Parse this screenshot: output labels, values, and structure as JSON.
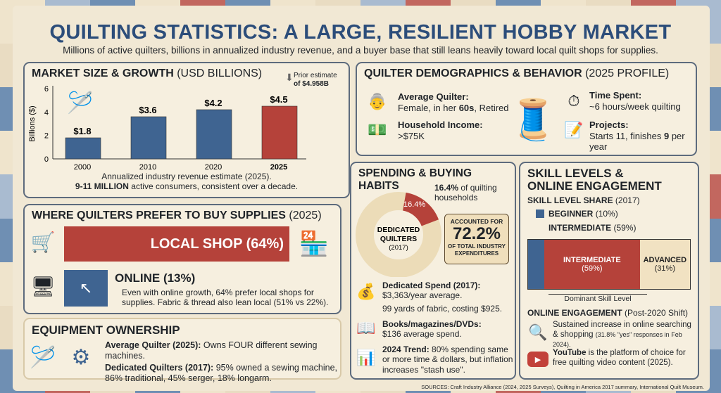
{
  "header": {
    "title": "QUILTING STATISTICS: A LARGE, RESILIENT HOBBY MARKET",
    "subtitle": "Millions of active quilters, billions in annualized industry revenue, and a buyer base that still leans heavily toward local quilt shops for supplies."
  },
  "market": {
    "title": "MARKET SIZE & GROWTH",
    "title_suffix": "(USD BILLIONS)",
    "prior_note": "Prior estimate",
    "prior_value": "of $4.958B",
    "caption1": "Annualized industry revenue estimate (2025).",
    "caption2_bold": "9-11 MILLION",
    "caption2": "active consumers, consistent over a decade."
  },
  "chart_data": {
    "type": "bar",
    "categories": [
      "2000",
      "2010",
      "2020",
      "2025"
    ],
    "values": [
      1.8,
      3.6,
      4.2,
      4.5
    ],
    "data_labels": [
      "$1.8",
      "$3.6",
      "$4.2",
      "$4.5"
    ],
    "ylabel": "Billions ($)",
    "ylim": [
      0,
      6
    ],
    "yticks": [
      "0",
      "2",
      "4",
      "6"
    ],
    "colors": [
      "#3f6491",
      "#3f6491",
      "#3f6491",
      "#b5423a"
    ],
    "grid": false
  },
  "demographics": {
    "title": "QUILTER DEMOGRAPHICS & BEHAVIOR",
    "title_suffix": "(2025 PROFILE)",
    "avg_label": "Average Quilter:",
    "avg_a": "Female, in her ",
    "avg_b": "60s",
    "avg_c": ", Retired",
    "income_label": "Household Income:",
    "income": ">$75K",
    "time_label": "Time Spent:",
    "time": "~6 hours/week quilting",
    "projects_label": "Projects:",
    "projects_a": "Starts 11, finishes ",
    "projects_b": "9",
    "projects_c": " per year"
  },
  "buy": {
    "title": "WHERE QUILTERS PREFER TO BUY SUPPLIES",
    "title_suffix": "(2025)",
    "local": "LOCAL SHOP (64%)",
    "local_pct": 64,
    "shop_sign": "QUILT SHOP",
    "online": "ONLINE (13%)",
    "online_pct": 13,
    "note": "Even with online growth, 64% prefer local shops for supplies. Fabric & thread also lean local (51% vs 22%)."
  },
  "equipment": {
    "title": "EQUIPMENT OWNERSHIP",
    "l1_bold": "Average Quilter (2025):",
    "l1": " Owns FOUR different sewing machines.",
    "l2_bold": "Dedicated Quilters (2017):",
    "l2": " 95% owned a sewing machine, 86% traditional, 45% serger, 18% longarm."
  },
  "spending": {
    "title": "SPENDING & BUYING HABITS",
    "slice_pct": 16.4,
    "slice_label": "16.4%",
    "callout_bold": "16.4%",
    "callout": " of quilting households",
    "center1": "DEDICATED",
    "center2": "QUILTERS",
    "center3": "(2017)",
    "acc_top": "ACCOUNTED FOR",
    "acc_val": "72.2%",
    "acc_bottom": "OF TOTAL INDUSTRY EXPENDITURES",
    "spend_label": "Dedicated Spend (2017):",
    "spend": "$3,363/year average.",
    "fabric": "99 yards of fabric, costing $925.",
    "books_label": "Books/magazines/DVDs:",
    "books": "$136 average spend.",
    "trend_bold": "2024 Trend:",
    "trend": " 80% spending same or more time & dollars, but inflation increases \"stash use\"."
  },
  "skills": {
    "title1": "SKILL LEVELS &",
    "title2": "ONLINE ENGAGEMENT",
    "share_bold": "SKILL LEVEL SHARE",
    "share_suffix": "(2017)",
    "beg_bold": "BEGINNER",
    "beg": "(10%)",
    "int_bold": "INTERMEDIATE",
    "int": "(59%)",
    "segments": [
      {
        "label": "",
        "pct": 10,
        "color": "#3f6491"
      },
      {
        "label": "INTERMEDIATE",
        "sub": "(59%)",
        "pct": 59,
        "color": "#b5423a"
      },
      {
        "label": "ADVANCED",
        "sub": "(31%)",
        "pct": 31,
        "color": "#f1e2c2"
      }
    ],
    "dominant": "Dominant Skill Level",
    "online_bold": "ONLINE ENGAGEMENT",
    "online_suffix": "(Post-2020 Shift)",
    "search": "Sustained increase in online searching & shopping",
    "search_small": "(31.8% \"yes\" responses in Feb 2024).",
    "yt_bold": "YouTube",
    "yt": " is the platform of choice for free quilting video content (2025)."
  },
  "sources": "SOURCES: Craft Industry Alliance (2024, 2025 Surveys), Quilting in America 2017 summary, International Quilt Museum."
}
